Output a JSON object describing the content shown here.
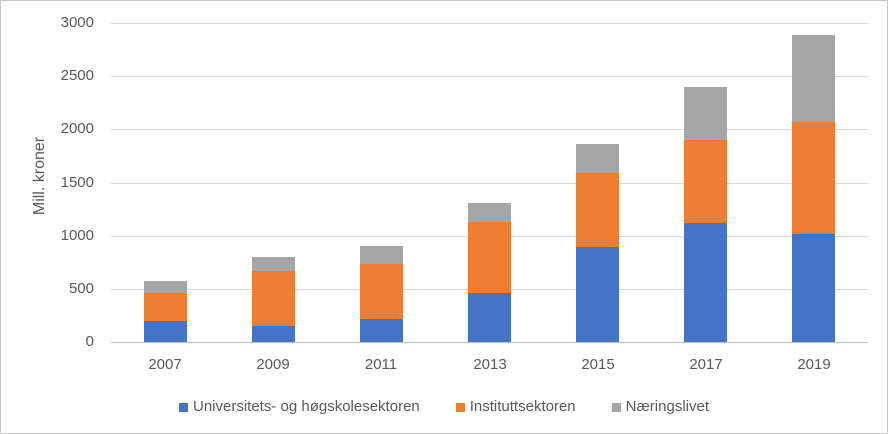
{
  "chart_data": {
    "type": "bar",
    "stacked": true,
    "title": "",
    "xlabel": "",
    "ylabel": "Mill. kroner",
    "categories": [
      "2007",
      "2009",
      "2011",
      "2013",
      "2015",
      "2017",
      "2019"
    ],
    "series": [
      {
        "name": "Universitets- og høgskolesektoren",
        "color": "#4472C4",
        "values": [
          195,
          155,
          220,
          465,
          890,
          1115,
          1020
        ]
      },
      {
        "name": "Instituttsektoren",
        "color": "#ED7D31",
        "values": [
          270,
          510,
          510,
          665,
          695,
          785,
          1050
        ]
      },
      {
        "name": "Næringslivet",
        "color": "#A5A5A5",
        "values": [
          105,
          130,
          175,
          180,
          275,
          500,
          815
        ]
      }
    ],
    "ylim": [
      0,
      3000
    ],
    "ytick_step": 500,
    "yticks": [
      "0",
      "500",
      "1000",
      "1500",
      "2000",
      "2500",
      "3000"
    ],
    "grid": true,
    "legend_position": "bottom",
    "colors": {
      "gridline": "#D9D9D9",
      "axis_line": "#BFBFBF",
      "text": "#595959",
      "background": "#FFFFFF",
      "border": "#C9C9C9"
    }
  }
}
